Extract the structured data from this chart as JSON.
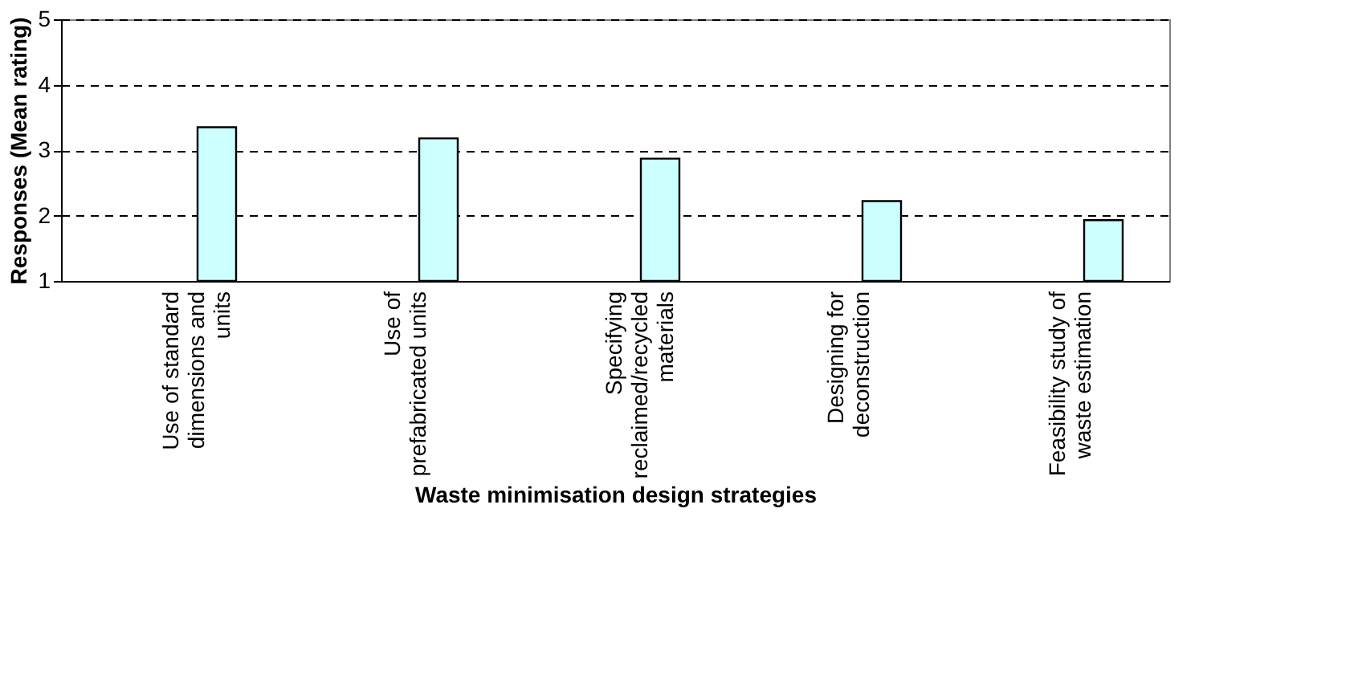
{
  "chart_data": {
    "type": "bar",
    "xlabel": "Waste minimisation design strategies",
    "ylabel": "Responses (Mean rating)",
    "categories": [
      "Use of standard\ndimensions and\nunits",
      "Use of\nprefabricated units",
      "Specifying\nreclaimed/recycled\nmaterials",
      "Designing for\ndeconstruction",
      "Feasibility study of\nwaste estimation"
    ],
    "values": [
      3.35,
      3.18,
      2.87,
      2.22,
      1.93
    ],
    "color": "#ccffff",
    "ylim": [
      1,
      5
    ],
    "yticks": [
      1,
      2,
      3,
      4,
      5
    ],
    "grid": "y",
    "line_style": "dashed"
  }
}
